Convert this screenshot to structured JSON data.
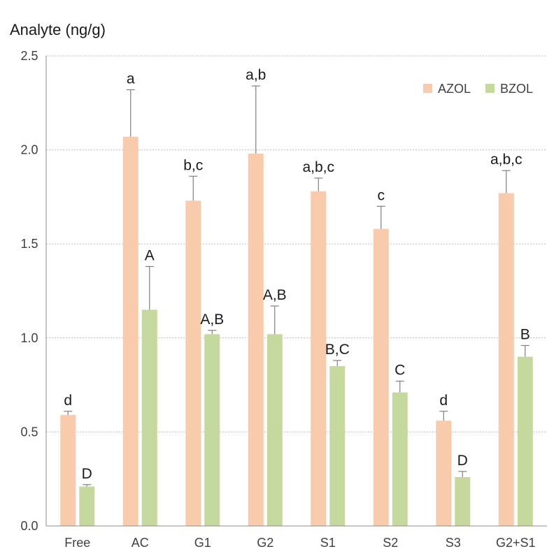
{
  "chart_data": {
    "type": "bar",
    "title": "",
    "ylabel": "Analyte (ng/g)",
    "xlabel": "",
    "ylim": [
      0,
      2.5
    ],
    "yticks": [
      "0.0",
      "0.5",
      "1.0",
      "1.5",
      "2.0",
      "2.5"
    ],
    "grid": true,
    "legend_position": "top-right",
    "categories": [
      "Free",
      "AC",
      "G1",
      "G2",
      "S1",
      "S2",
      "S3",
      "G2+S1"
    ],
    "series": [
      {
        "name": "AZOL",
        "color": "#f8cbad",
        "values": [
          0.59,
          2.07,
          1.73,
          1.98,
          1.78,
          1.58,
          0.56,
          1.77
        ],
        "errors": [
          0.02,
          0.25,
          0.13,
          0.36,
          0.07,
          0.12,
          0.05,
          0.12
        ],
        "labels": [
          "d",
          "a",
          "b,c",
          "a,b",
          "a,b,c",
          "c",
          "d",
          "a,b,c"
        ]
      },
      {
        "name": "BZOL",
        "color": "#c5d89e",
        "values": [
          0.21,
          1.15,
          1.02,
          1.02,
          0.85,
          0.71,
          0.26,
          0.9
        ],
        "errors": [
          0.01,
          0.23,
          0.02,
          0.15,
          0.03,
          0.06,
          0.03,
          0.06
        ],
        "labels": [
          "D",
          "A",
          "A,B",
          "A,B",
          "B,C",
          "C",
          "D",
          "B"
        ]
      }
    ]
  }
}
